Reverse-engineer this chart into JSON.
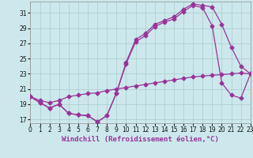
{
  "xlabel": "Windchill (Refroidissement éolien,°C)",
  "bg_color": "#cce8ec",
  "grid_color": "#aacccc",
  "line_color": "#993399",
  "xlim": [
    0,
    23
  ],
  "ylim": [
    16.5,
    32.5
  ],
  "xticks": [
    0,
    1,
    2,
    3,
    4,
    5,
    6,
    7,
    8,
    9,
    10,
    11,
    12,
    13,
    14,
    15,
    16,
    17,
    18,
    19,
    20,
    21,
    22,
    23
  ],
  "yticks": [
    17,
    19,
    21,
    23,
    25,
    27,
    29,
    31
  ],
  "line1_x": [
    0,
    1,
    2,
    3,
    4,
    5,
    6,
    7,
    8,
    9,
    10,
    11,
    12,
    13,
    14,
    15,
    16,
    17,
    18,
    19,
    20,
    21,
    22,
    23
  ],
  "line1_y": [
    20.0,
    19.2,
    18.5,
    19.0,
    17.8,
    17.6,
    17.5,
    16.7,
    17.5,
    20.5,
    24.5,
    27.5,
    28.3,
    29.5,
    30.0,
    30.5,
    31.5,
    32.2,
    32.0,
    31.8,
    29.5,
    26.5,
    24.0,
    23.0
  ],
  "line2_x": [
    0,
    1,
    2,
    3,
    4,
    5,
    6,
    7,
    8,
    9,
    10,
    11,
    12,
    13,
    14,
    15,
    16,
    17,
    18,
    19,
    20,
    21,
    22,
    23
  ],
  "line2_y": [
    20.0,
    19.2,
    18.5,
    19.0,
    17.8,
    17.6,
    17.5,
    16.7,
    17.5,
    20.5,
    24.3,
    27.2,
    28.0,
    29.2,
    29.8,
    30.2,
    31.2,
    32.0,
    31.7,
    29.3,
    21.8,
    20.2,
    19.8,
    23.0
  ],
  "line3_x": [
    0,
    1,
    2,
    3,
    4,
    5,
    6,
    7,
    8,
    9,
    10,
    11,
    12,
    13,
    14,
    15,
    16,
    17,
    18,
    19,
    20,
    21,
    22,
    23
  ],
  "line3_y": [
    20.0,
    19.5,
    19.2,
    19.5,
    20.0,
    20.2,
    20.4,
    20.5,
    20.8,
    21.0,
    21.2,
    21.4,
    21.6,
    21.8,
    22.0,
    22.2,
    22.4,
    22.6,
    22.7,
    22.8,
    22.9,
    23.0,
    23.1,
    23.0
  ],
  "markersize": 2.5,
  "linewidth": 0.9,
  "tick_fontsize": 5.5,
  "xlabel_fontsize": 6.5
}
